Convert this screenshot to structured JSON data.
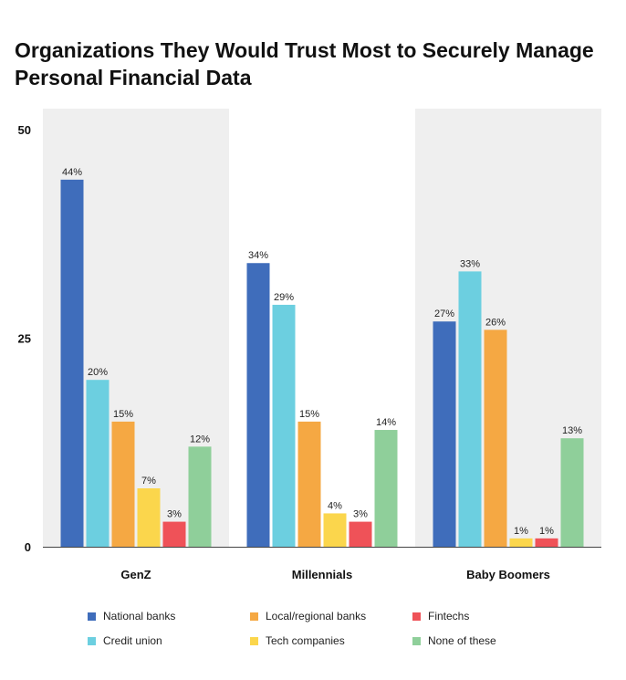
{
  "title": "Organizations They Would Trust Most to Securely Manage Personal Financial Data",
  "chart_data": {
    "type": "bar",
    "categories": [
      "GenZ",
      "Millennials",
      "Baby Boomers"
    ],
    "series": [
      {
        "name": "National banks",
        "color": "#3f6dbb",
        "values": [
          44,
          34,
          27
        ],
        "labels": [
          "44%",
          "34%",
          "27%"
        ]
      },
      {
        "name": "Credit union",
        "color": "#6ccfe0",
        "values": [
          20,
          29,
          33
        ],
        "labels": [
          "20%",
          "29%",
          "33%"
        ]
      },
      {
        "name": "Local/regional banks",
        "color": "#f5a843",
        "values": [
          15,
          15,
          26
        ],
        "labels": [
          "15%",
          "15%",
          "26%"
        ]
      },
      {
        "name": "Tech companies",
        "color": "#fbd64c",
        "values": [
          7,
          4,
          1
        ],
        "labels": [
          "7%",
          "4%",
          "1%"
        ]
      },
      {
        "name": "Fintechs",
        "color": "#ef5258",
        "values": [
          3,
          3,
          1
        ],
        "labels": [
          "3%",
          "3%",
          "1%"
        ]
      },
      {
        "name": "None of these",
        "color": "#8fcf9a",
        "values": [
          12,
          14,
          13
        ],
        "labels": [
          "12%",
          "14%",
          "13%"
        ]
      }
    ],
    "ylim": [
      0,
      50
    ],
    "yticks": [
      0,
      25,
      50
    ],
    "ytick_labels": [
      "0",
      "25",
      "50"
    ],
    "xlabel": "",
    "ylabel": "",
    "grid": false,
    "band_color": "#efefef",
    "legend_position": "bottom"
  }
}
